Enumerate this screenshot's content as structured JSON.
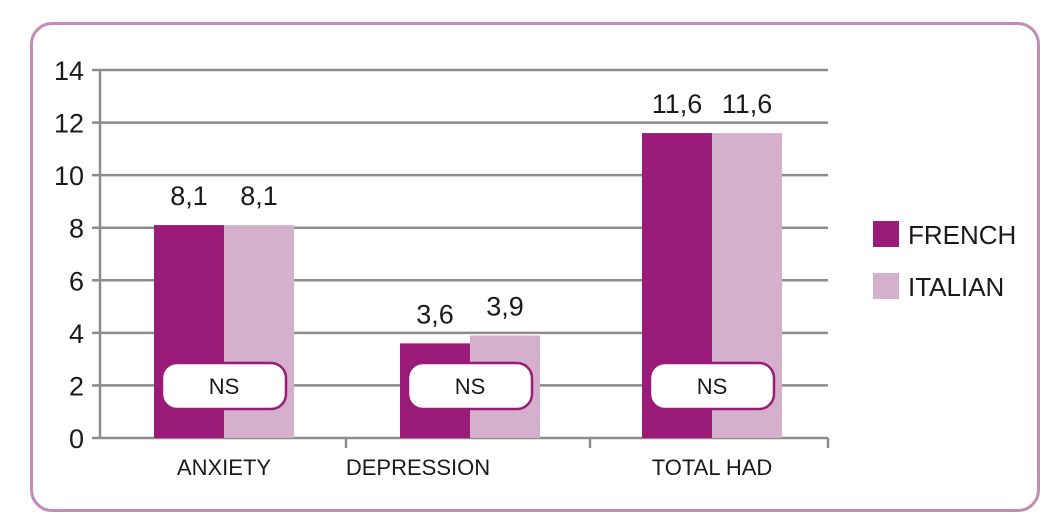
{
  "chart_data": {
    "type": "bar",
    "categories": [
      "ANXIETY",
      "DEPRESSION",
      "TOTAL HAD"
    ],
    "series": [
      {
        "name": "FRENCH",
        "color": "#9b1b78",
        "values": [
          8.1,
          3.6,
          11.6
        ],
        "labels": [
          "8,1",
          "3,6",
          "11,6"
        ]
      },
      {
        "name": "ITALIAN",
        "color": "#d4b0cc",
        "values": [
          8.1,
          3.9,
          11.6
        ],
        "labels": [
          "8,1",
          "3,9",
          "11,6"
        ]
      }
    ],
    "annotations": [
      "NS",
      "NS",
      "NS"
    ],
    "ylim": [
      0,
      14
    ],
    "yticks": [
      0,
      2,
      4,
      6,
      8,
      10,
      12,
      14
    ],
    "grid": true,
    "legend": "right",
    "frame_color": "#c58bb4"
  }
}
